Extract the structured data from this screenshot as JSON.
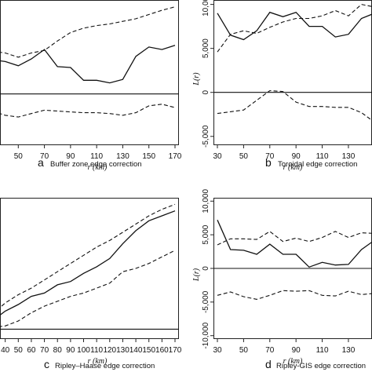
{
  "chart_data": [
    {
      "id": "a",
      "type": "line",
      "caption_letter": "a",
      "caption_text": "Buffer zone edge correction",
      "xlabel": "r (km)",
      "ylabel": "",
      "xticks": [
        50,
        70,
        90,
        110,
        130,
        150,
        170
      ],
      "xticklabels": [
        "50",
        "70",
        "90",
        "110",
        "130",
        "150",
        "170"
      ],
      "yticks": [],
      "yticklabels": [],
      "xlim": [
        36,
        173
      ],
      "ylim": [
        -6000,
        11000
      ],
      "zero_line": 0,
      "x": [
        30,
        40,
        50,
        60,
        70,
        80,
        90,
        100,
        110,
        120,
        130,
        140,
        150,
        160,
        170
      ],
      "series": [
        {
          "style": "dashed",
          "values": [
            5000,
            4800,
            4300,
            4800,
            5100,
            6200,
            7200,
            7700,
            8000,
            8200,
            8500,
            8800,
            9300,
            9800,
            10200
          ]
        },
        {
          "style": "solid",
          "values": [
            4000,
            3800,
            3300,
            4100,
            5200,
            3200,
            3100,
            1600,
            1600,
            1300,
            1700,
            4400,
            5500,
            5200,
            5700
          ]
        },
        {
          "style": "dashed",
          "values": [
            -2000,
            -2500,
            -2700,
            -2300,
            -1900,
            -2000,
            -2100,
            -2200,
            -2200,
            -2300,
            -2500,
            -2200,
            -1400,
            -1200,
            -1600
          ]
        }
      ]
    },
    {
      "id": "b",
      "type": "line",
      "caption_letter": "b",
      "caption_text": "Toroidal edge correction",
      "xlabel": "r (km)",
      "ylabel": "L(r)",
      "xticks": [
        30,
        50,
        70,
        90,
        110,
        130
      ],
      "xticklabels": [
        "30",
        "50",
        "70",
        "90",
        "110",
        "130"
      ],
      "yticks": [
        10000,
        5000,
        0,
        -5000
      ],
      "yticklabels": [
        "10,000",
        "5,000",
        "0",
        "-5,000"
      ],
      "xlim": [
        27,
        148
      ],
      "ylim": [
        -6000,
        10500
      ],
      "zero_line": 0,
      "x": [
        30,
        40,
        50,
        60,
        70,
        80,
        90,
        100,
        110,
        120,
        130,
        140,
        150
      ],
      "series": [
        {
          "style": "dashed",
          "values": [
            4600,
            6600,
            7000,
            6700,
            7400,
            8000,
            8400,
            8400,
            8700,
            9300,
            8700,
            10000,
            9700
          ]
        },
        {
          "style": "solid",
          "values": [
            9000,
            6500,
            6000,
            7000,
            9100,
            8600,
            9100,
            7500,
            7500,
            6300,
            6600,
            8400,
            9000
          ]
        },
        {
          "style": "dashed",
          "values": [
            -2400,
            -2200,
            -2000,
            -900,
            200,
            100,
            -1100,
            -1600,
            -1600,
            -1700,
            -1700,
            -2300,
            -3400
          ]
        }
      ]
    },
    {
      "id": "c",
      "type": "line",
      "caption_letter": "c",
      "caption_text": "Ripley–Haase edge correction",
      "xlabel": "r (km)",
      "ylabel": "",
      "xticks": [
        40,
        50,
        60,
        70,
        80,
        90,
        100,
        110,
        120,
        130,
        140,
        150,
        160,
        170
      ],
      "xticklabels": [
        "40",
        "50",
        "60",
        "70",
        "80",
        "90",
        "100",
        "110",
        "120",
        "130",
        "140",
        "150",
        "160",
        "170"
      ],
      "yticks": [],
      "yticklabels": [],
      "xlim": [
        36,
        173
      ],
      "ylim": [
        -3000,
        40000
      ],
      "zero_line": 0,
      "x": [
        30,
        40,
        50,
        60,
        70,
        80,
        90,
        100,
        110,
        120,
        130,
        140,
        150,
        160,
        170
      ],
      "series": [
        {
          "style": "dashed",
          "values": [
            4500,
            8000,
            10500,
            12500,
            15000,
            17500,
            20000,
            22500,
            25000,
            27000,
            29500,
            32000,
            34500,
            36500,
            38000
          ]
        },
        {
          "style": "solid",
          "values": [
            2500,
            5500,
            7500,
            10000,
            11000,
            13500,
            14500,
            17000,
            19000,
            21500,
            26000,
            30000,
            33000,
            34500,
            36000
          ]
        },
        {
          "style": "dashed",
          "values": [
            500,
            1000,
            2500,
            5000,
            7000,
            8500,
            10000,
            11000,
            12500,
            14000,
            17500,
            18500,
            20000,
            22000,
            24000
          ]
        }
      ]
    },
    {
      "id": "d",
      "type": "line",
      "caption_letter": "d",
      "caption_text": "Ripley-GIS edge correction",
      "xlabel": "r (km)",
      "ylabel": "L(r)",
      "xticks": [
        30,
        50,
        70,
        90,
        110,
        130
      ],
      "xticklabels": [
        "30",
        "50",
        "70",
        "90",
        "110",
        "130"
      ],
      "yticks": [
        10000,
        5000,
        0,
        -5000,
        -10000
      ],
      "yticklabels": [
        "10,000",
        "5,000",
        "0",
        "-5,000",
        "-10,000"
      ],
      "xlim": [
        27,
        148
      ],
      "ylim": [
        -10500,
        10500
      ],
      "zero_line": 0,
      "x": [
        30,
        40,
        50,
        60,
        70,
        80,
        90,
        100,
        110,
        120,
        130,
        140,
        150
      ],
      "series": [
        {
          "style": "dashed",
          "values": [
            3500,
            4400,
            4400,
            4300,
            5500,
            4000,
            4500,
            4000,
            4600,
            5500,
            4600,
            5300,
            5200
          ]
        },
        {
          "style": "solid",
          "values": [
            7200,
            2800,
            2700,
            2100,
            3600,
            2100,
            2100,
            200,
            900,
            500,
            600,
            2800,
            4200
          ]
        },
        {
          "style": "dashed",
          "values": [
            -4000,
            -3500,
            -4200,
            -4600,
            -4000,
            -3300,
            -3400,
            -3300,
            -4000,
            -4100,
            -3400,
            -3900,
            -3700
          ]
        }
      ]
    }
  ]
}
